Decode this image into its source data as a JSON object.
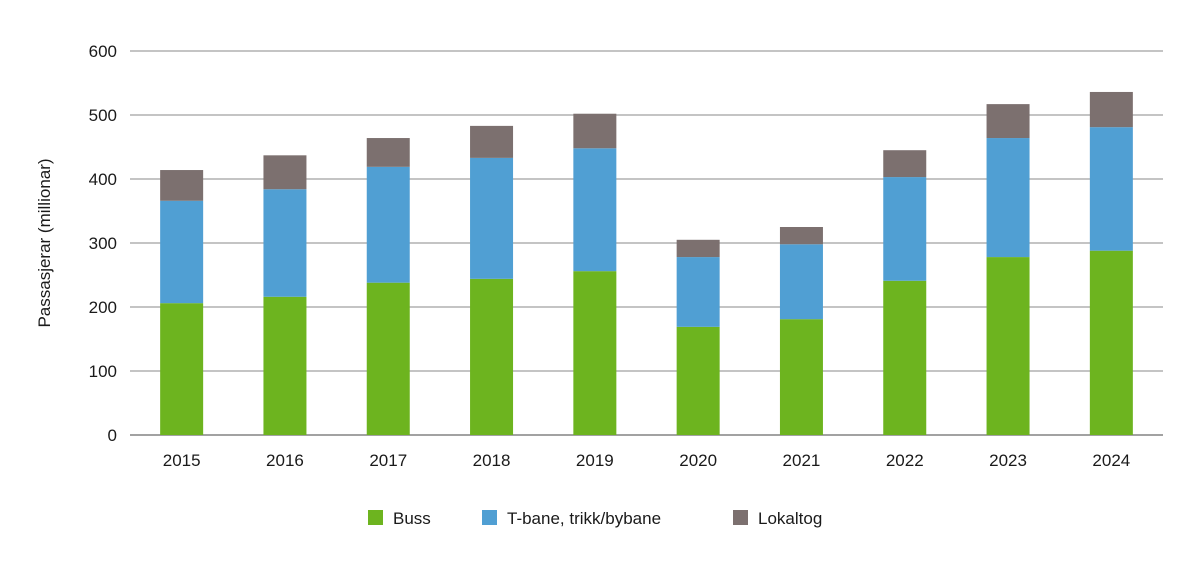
{
  "chart_data": {
    "type": "bar",
    "stacked": true,
    "title": "",
    "xlabel": "",
    "ylabel": "Passasjerar (millionar)",
    "ylim": [
      0,
      600
    ],
    "yticks": [
      0,
      100,
      200,
      300,
      400,
      500,
      600
    ],
    "grid": true,
    "legend_position": "bottom",
    "categories": [
      "2015",
      "2016",
      "2017",
      "2018",
      "2019",
      "2020",
      "2021",
      "2022",
      "2023",
      "2024"
    ],
    "series": [
      {
        "name": "Buss",
        "color": "#6db41f",
        "values": [
          206,
          216,
          238,
          244,
          256,
          169,
          181,
          241,
          278,
          288
        ]
      },
      {
        "name": "T-bane, trikk/bybane",
        "color": "#509fd3",
        "values": [
          160,
          168,
          181,
          189,
          192,
          109,
          117,
          162,
          186,
          193
        ]
      },
      {
        "name": "Lokaltog",
        "color": "#7c706f",
        "values": [
          48,
          53,
          45,
          50,
          54,
          27,
          27,
          42,
          53,
          55
        ]
      }
    ]
  }
}
